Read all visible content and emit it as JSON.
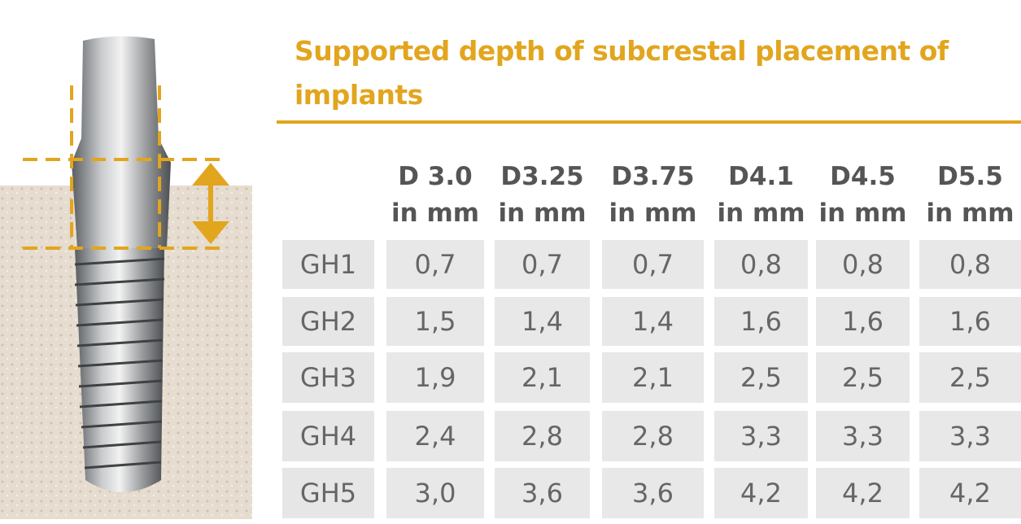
{
  "title": "Supported depth of subcrestal placement of implants",
  "table": {
    "columns": [
      {
        "name": "D 3.0",
        "unit": "in mm"
      },
      {
        "name": "D3.25",
        "unit": "in mm"
      },
      {
        "name": "D3.75",
        "unit": "in mm"
      },
      {
        "name": "D4.1",
        "unit": "in mm"
      },
      {
        "name": "D4.5",
        "unit": "in mm"
      },
      {
        "name": "D5.5",
        "unit": "in mm"
      }
    ],
    "rows": [
      {
        "label": "GH1",
        "values": [
          "0,7",
          "0,7",
          "0,7",
          "0,8",
          "0,8",
          "0,8"
        ]
      },
      {
        "label": "GH2",
        "values": [
          "1,5",
          "1,4",
          "1,4",
          "1,6",
          "1,6",
          "1,6"
        ]
      },
      {
        "label": "GH3",
        "values": [
          "1,9",
          "2,1",
          "2,1",
          "2,5",
          "2,5",
          "2,5"
        ]
      },
      {
        "label": "GH4",
        "values": [
          "2,4",
          "2,8",
          "2,8",
          "3,3",
          "3,3",
          "3,3"
        ]
      },
      {
        "label": "GH5",
        "values": [
          "3,0",
          "3,6",
          "3,6",
          "4,2",
          "4,2",
          "4,2"
        ]
      }
    ]
  }
}
